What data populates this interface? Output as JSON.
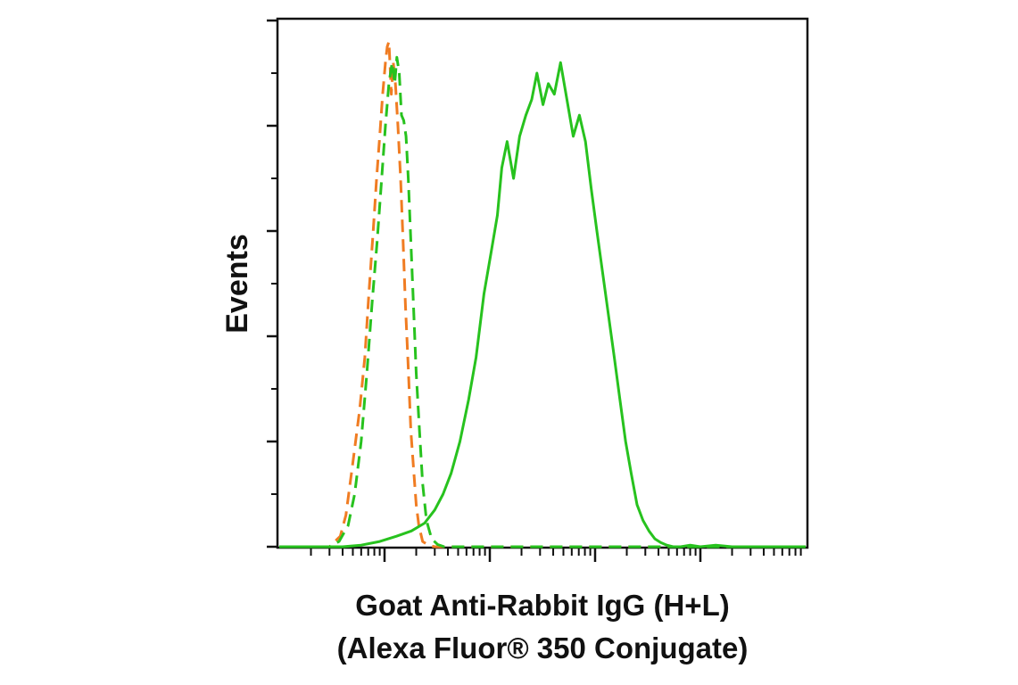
{
  "chart_data": {
    "type": "line",
    "title": "",
    "xlabel_line1": "Goat Anti-Rabbit IgG (H+L)",
    "xlabel_line2": "(Alexa Fluor® 350 Conjugate)",
    "ylabel": "Events",
    "x_scale": "log",
    "xlim": [
      0.1,
      10000
    ],
    "ylim": [
      0,
      100
    ],
    "grid": false,
    "legend": "none",
    "y_major_ticks": [
      0,
      20,
      40,
      60,
      80,
      100
    ],
    "y_minor_ticks": [
      10,
      30,
      50,
      70,
      90
    ],
    "x_major_ticks": [
      1,
      10,
      100,
      1000
    ],
    "x_minor_ticks": [
      0.2,
      0.3,
      0.4,
      0.5,
      0.6,
      0.7,
      0.8,
      0.9,
      2,
      3,
      4,
      5,
      6,
      7,
      8,
      9,
      20,
      30,
      40,
      50,
      60,
      70,
      80,
      90,
      200,
      300,
      400,
      500,
      600,
      700,
      800,
      900,
      2000,
      3000,
      4000,
      5000,
      6000,
      7000,
      8000,
      9000
    ],
    "series": [
      {
        "color": "#f07c22",
        "dash": "dashed",
        "x": [
          0.1,
          0.3,
          0.38,
          0.43,
          0.5,
          0.58,
          0.65,
          0.71,
          0.78,
          0.84,
          0.9,
          0.96,
          1.02,
          1.06,
          1.1,
          1.13,
          1.16,
          1.21,
          1.27,
          1.34,
          1.42,
          1.5,
          1.58,
          1.68,
          1.78,
          1.9,
          2.0,
          2.12,
          2.3,
          2.6,
          3.0,
          10000
        ],
        "y": [
          0,
          0,
          2,
          6,
          16,
          26,
          36,
          48,
          60,
          70,
          78,
          86,
          92,
          95,
          96,
          91,
          86,
          92,
          88,
          80,
          70,
          58,
          46,
          34,
          22,
          14,
          8,
          4,
          1,
          0.3,
          0,
          0
        ]
      },
      {
        "color": "#27c21e",
        "dash": "dashed",
        "x": [
          0.1,
          0.3,
          0.37,
          0.45,
          0.52,
          0.6,
          0.68,
          0.76,
          0.85,
          0.94,
          1.02,
          1.1,
          1.18,
          1.25,
          1.31,
          1.38,
          1.45,
          1.52,
          1.6,
          1.68,
          1.78,
          1.88,
          2.0,
          2.15,
          2.3,
          2.5,
          2.8,
          3.2,
          3.7,
          10000
        ],
        "y": [
          0,
          0,
          1,
          4,
          10,
          20,
          33,
          46,
          58,
          70,
          80,
          88,
          92,
          88,
          93,
          90,
          82,
          81,
          78,
          70,
          58,
          46,
          33,
          22,
          12,
          5,
          1.5,
          0.4,
          0,
          0
        ]
      },
      {
        "color": "#27c21e",
        "dash": "solid",
        "x": [
          0.1,
          0.4,
          0.6,
          0.9,
          1.3,
          1.8,
          2.4,
          3.0,
          3.6,
          4.3,
          5.2,
          6.3,
          7.4,
          8.8,
          10.3,
          11.8,
          13.0,
          14.6,
          16.8,
          19.2,
          22.0,
          25.0,
          28.0,
          32.0,
          36.0,
          41.0,
          47.0,
          54.0,
          62.0,
          71.0,
          81.0,
          92.0,
          104,
          118,
          134,
          152,
          172,
          195,
          220,
          250,
          285,
          325,
          370,
          420,
          480,
          550,
          650,
          800,
          1000,
          1400,
          2000,
          3500,
          10000
        ],
        "y": [
          0,
          0,
          0.3,
          1,
          2,
          3,
          4.5,
          7,
          10,
          14,
          20,
          28,
          36,
          48,
          56,
          63,
          72,
          77,
          70,
          78,
          82,
          85,
          90,
          84,
          88,
          86,
          92,
          85,
          78,
          82,
          77,
          68,
          60,
          52,
          44,
          36,
          28,
          20,
          14,
          8,
          5,
          3,
          1.5,
          0.8,
          0.3,
          0,
          0,
          0.3,
          0,
          0.3,
          0,
          0,
          0
        ]
      }
    ]
  }
}
